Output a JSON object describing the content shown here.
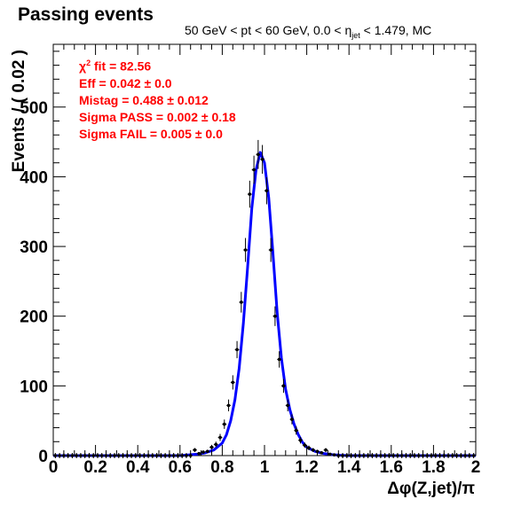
{
  "title": "Passing events",
  "subtitle": {
    "prefix": "50 GeV < pt < 60 GeV, 0.0 < η",
    "sub": "jet",
    "suffix": " < 1.479, MC"
  },
  "fit_info": {
    "chi2_prefix": "χ",
    "chi2_sup": "2",
    "chi2_rest": " fit = 82.56",
    "eff": "Eff = 0.042 ± 0.0",
    "mistag": "Mistag = 0.488 ± 0.012",
    "sigma_pass": "Sigma PASS = 0.002 ± 0.18",
    "sigma_fail": "Sigma FAIL = 0.005 ± 0.0"
  },
  "colors": {
    "fit_curve": "#0000ff",
    "points": "#000000",
    "fit_text": "#ff0000"
  },
  "chart_data": {
    "type": "scatter",
    "title": "Passing events",
    "xlabel": "Δφ(Z,jet)/π",
    "ylabel": "Events / ( 0.02 )",
    "xlim": [
      0,
      2
    ],
    "ylim": [
      0,
      590
    ],
    "x_ticks": [
      0,
      0.2,
      0.4,
      0.6,
      0.8,
      1,
      1.2,
      1.4,
      1.6,
      1.8,
      2
    ],
    "x_tick_labels": [
      "0",
      "0.2",
      "0.4",
      "0.6",
      "0.8",
      "1",
      "1.2",
      "1.4",
      "1.6",
      "1.8",
      "2"
    ],
    "y_ticks": [
      0,
      100,
      200,
      300,
      400,
      500
    ],
    "y_tick_labels": [
      "0",
      "100",
      "200",
      "300",
      "400",
      "500"
    ],
    "bin_width": 0.02,
    "series": [
      {
        "kind": "data",
        "x": [
          0.01,
          0.03,
          0.05,
          0.07,
          0.09,
          0.11,
          0.13,
          0.15,
          0.17,
          0.19,
          0.21,
          0.23,
          0.25,
          0.27,
          0.29,
          0.31,
          0.33,
          0.35,
          0.37,
          0.39,
          0.41,
          0.43,
          0.45,
          0.47,
          0.49,
          0.51,
          0.53,
          0.55,
          0.57,
          0.59,
          0.61,
          0.63,
          0.65,
          0.67,
          0.69,
          0.71,
          0.73,
          0.75,
          0.77,
          0.79,
          0.81,
          0.83,
          0.85,
          0.87,
          0.89,
          0.91,
          0.93,
          0.95,
          0.97,
          0.99,
          1.01,
          1.03,
          1.05,
          1.07,
          1.09,
          1.11,
          1.13,
          1.15,
          1.17,
          1.19,
          1.21,
          1.23,
          1.25,
          1.27,
          1.29,
          1.31,
          1.33,
          1.35,
          1.37,
          1.39,
          1.41,
          1.43,
          1.45,
          1.47,
          1.49,
          1.51,
          1.53,
          1.55,
          1.57,
          1.59,
          1.61,
          1.63,
          1.65,
          1.67,
          1.69,
          1.71,
          1.73,
          1.75,
          1.77,
          1.79,
          1.81,
          1.83,
          1.85,
          1.87,
          1.89,
          1.91,
          1.93,
          1.95,
          1.97,
          1.99
        ],
        "y": [
          0,
          0,
          0,
          0,
          0,
          0,
          0,
          0,
          0,
          0,
          0,
          0,
          0,
          0,
          0,
          0,
          0,
          0,
          0,
          0,
          0,
          0,
          0,
          0,
          0,
          0,
          0,
          0,
          0,
          0,
          0,
          0,
          0,
          8,
          3,
          5,
          6,
          12,
          16,
          26,
          45,
          72,
          105,
          152,
          220,
          295,
          375,
          410,
          432,
          425,
          380,
          295,
          200,
          138,
          100,
          72,
          52,
          36,
          22,
          15,
          11,
          8,
          6,
          4,
          8,
          2,
          1,
          0,
          0,
          0,
          0,
          0,
          0,
          0,
          0,
          0,
          0,
          0,
          0,
          0,
          0,
          0,
          0,
          0,
          0,
          0,
          0,
          0,
          0,
          0,
          0,
          0,
          0,
          0,
          0,
          0,
          0,
          0,
          0,
          0
        ]
      },
      {
        "kind": "fit",
        "x": [
          0.6,
          0.64,
          0.68,
          0.72,
          0.76,
          0.8,
          0.82,
          0.84,
          0.86,
          0.88,
          0.9,
          0.92,
          0.94,
          0.96,
          0.98,
          1.0,
          1.02,
          1.04,
          1.06,
          1.08,
          1.1,
          1.12,
          1.14,
          1.16,
          1.18,
          1.2,
          1.24,
          1.28,
          1.32,
          1.36,
          1.4
        ],
        "y": [
          0,
          1,
          2,
          4,
          8,
          18,
          30,
          50,
          80,
          125,
          190,
          270,
          355,
          410,
          435,
          420,
          370,
          290,
          205,
          140,
          95,
          66,
          45,
          30,
          19,
          12,
          6,
          3,
          1.5,
          0.5,
          0
        ]
      }
    ],
    "legend": "none",
    "grid": false
  }
}
